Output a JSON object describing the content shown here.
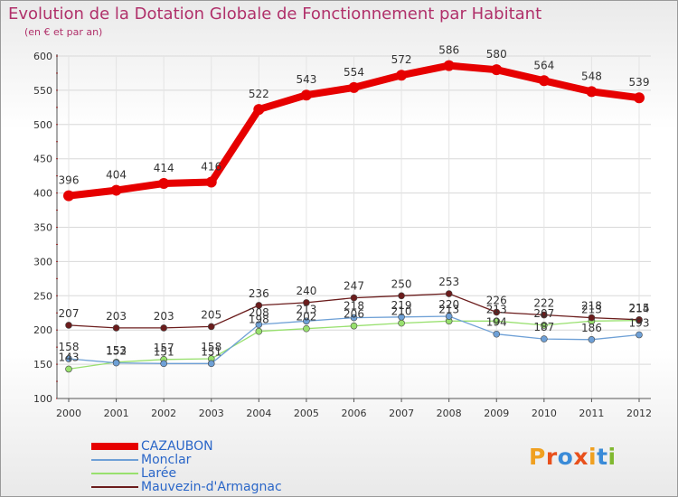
{
  "title": "Evolution de la Dotation Globale de Fonctionnement par Habitant",
  "subtitle": "(en € et par an)",
  "logo": {
    "text": "Proxiti",
    "colors": [
      "#f0a020",
      "#e8501c",
      "#3a8bd8",
      "#e8501c",
      "#f0a020",
      "#3a8bd8",
      "#80b830"
    ]
  },
  "chart_data": {
    "type": "line",
    "title": "Evolution de la Dotation Globale de Fonctionnement par Habitant",
    "ylabel": "(en € et par an)",
    "xlabel": "",
    "ylim": [
      100,
      600
    ],
    "yticks": [
      100,
      150,
      200,
      250,
      300,
      350,
      400,
      450,
      500,
      550,
      600
    ],
    "categories": [
      "2000",
      "2001",
      "2002",
      "2003",
      "2004",
      "2005",
      "2006",
      "2007",
      "2008",
      "2009",
      "2010",
      "2011",
      "2012"
    ],
    "series": [
      {
        "name": "CAZAUBON",
        "color": "#e60000",
        "values": [
          396,
          404,
          414,
          416,
          522,
          543,
          554,
          572,
          586,
          580,
          564,
          548,
          539
        ]
      },
      {
        "name": "Monclar",
        "color": "#6ea0d6",
        "values": [
          158,
          152,
          151,
          151,
          208,
          213,
          218,
          219,
          220,
          194,
          187,
          186,
          193
        ]
      },
      {
        "name": "Larée",
        "color": "#98e06e",
        "values": [
          143,
          153,
          157,
          158,
          198,
          202,
          206,
          210,
          213,
          213,
          207,
          213,
          214
        ]
      },
      {
        "name": "Mauvezin-d'Armagnac",
        "color": "#6b1c1c",
        "values": [
          207,
          203,
          203,
          205,
          236,
          240,
          247,
          250,
          253,
          226,
          222,
          218,
          215
        ]
      }
    ]
  }
}
